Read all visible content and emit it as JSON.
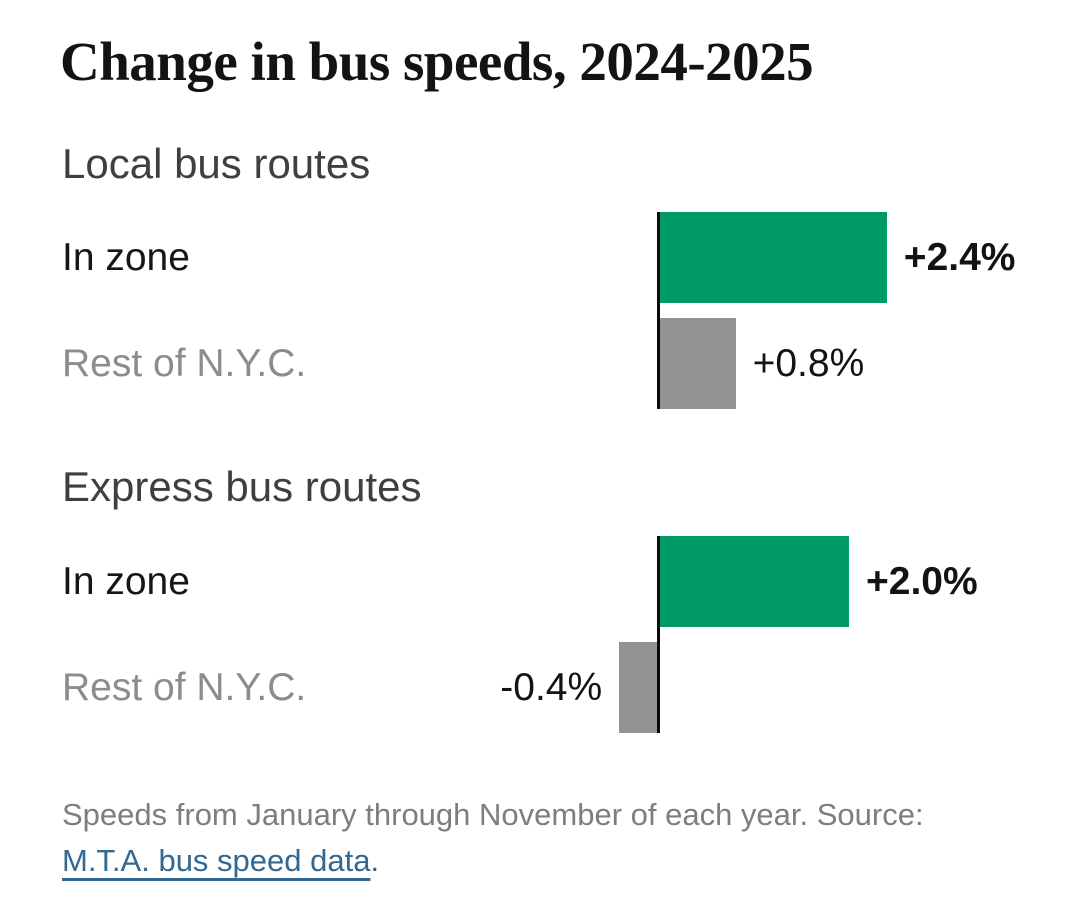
{
  "chart_data": {
    "type": "bar",
    "orientation": "horizontal",
    "title": "Change in bus speeds, 2024-2025",
    "unit": "percent change",
    "axis_baseline": 0,
    "legend": "none",
    "grid": false,
    "groups": [
      {
        "heading": "Local bus routes",
        "rows": [
          {
            "label": "In zone",
            "value": 2.4,
            "value_label": "+2.4%",
            "color": "#009a66",
            "label_color": "#161616",
            "emphasis": true
          },
          {
            "label": "Rest of N.Y.C.",
            "value": 0.8,
            "value_label": "+0.8%",
            "color": "#929292",
            "label_color": "#8c8c8c",
            "emphasis": false
          }
        ]
      },
      {
        "heading": "Express bus routes",
        "rows": [
          {
            "label": "In zone",
            "value": 2.0,
            "value_label": "+2.0%",
            "color": "#009a66",
            "label_color": "#161616",
            "emphasis": true
          },
          {
            "label": "Rest of N.Y.C.",
            "value": -0.4,
            "value_label": "-0.4%",
            "color": "#929292",
            "label_color": "#8c8c8c",
            "emphasis": false
          }
        ]
      }
    ],
    "footnote": "Speeds from January through November of each year. Source:",
    "source_link_text": "M.T.A. bus speed data",
    "source_suffix": "."
  },
  "colors": {
    "positive_bar_green": "#009a66",
    "neutral_bar_gray": "#929292",
    "axis_black": "#0a0a0a",
    "title_text": "#131313",
    "heading_text": "#3f3f3f",
    "muted_label": "#8c8c8c",
    "footer_text": "#7f7e7c",
    "link_blue": "#326891",
    "background": "#ffffff"
  }
}
